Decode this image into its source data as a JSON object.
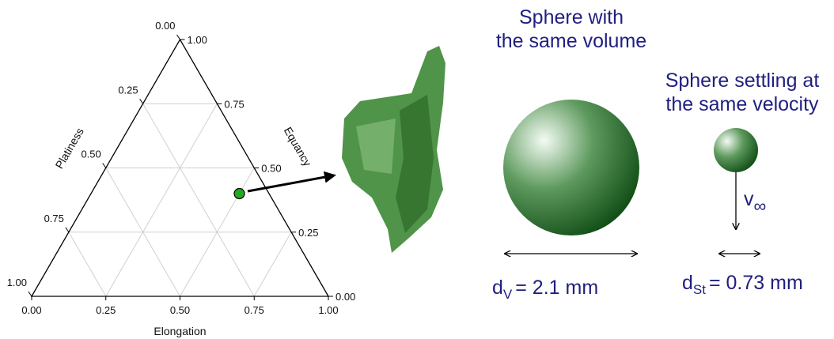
{
  "ternary": {
    "type": "ternary",
    "axes": {
      "bottom": {
        "label": "Elongation",
        "ticks": [
          {
            "value": 0,
            "label": "0.00"
          },
          {
            "value": 0.25,
            "label": "0.25"
          },
          {
            "value": 0.5,
            "label": "0.50"
          },
          {
            "value": 0.75,
            "label": "0.75"
          },
          {
            "value": 1,
            "label": "1.00"
          }
        ]
      },
      "right": {
        "label": "Equancy",
        "ticks": [
          {
            "value": 0,
            "label": "0.00"
          },
          {
            "value": 0.25,
            "label": "0.25"
          },
          {
            "value": 0.5,
            "label": "0.50"
          },
          {
            "value": 0.75,
            "label": "0.75"
          },
          {
            "value": 1,
            "label": "1.00"
          }
        ]
      },
      "left": {
        "label": "Platiness",
        "ticks": [
          {
            "value": 0,
            "label": "0.00"
          },
          {
            "value": 0.25,
            "label": "0.25"
          },
          {
            "value": 0.5,
            "label": "0.50"
          },
          {
            "value": 0.75,
            "label": "0.75"
          },
          {
            "value": 1,
            "label": "1.00"
          }
        ]
      }
    },
    "point": {
      "elongation": 0.5,
      "equancy": 0.4,
      "platiness": 0.1
    },
    "point_color": "#22aa22",
    "grid": true
  },
  "volume_sphere": {
    "title": [
      "Sphere with",
      "the same volume"
    ],
    "symbol": "d",
    "subscript": "V",
    "text": "= 2.1 mm"
  },
  "settling_sphere": {
    "title": [
      "Sphere settling at",
      "the same velocity"
    ],
    "symbol": "d",
    "subscript": "St",
    "text": "= 0.73 mm",
    "velocity": "v",
    "velocity_subscript": "∞"
  }
}
